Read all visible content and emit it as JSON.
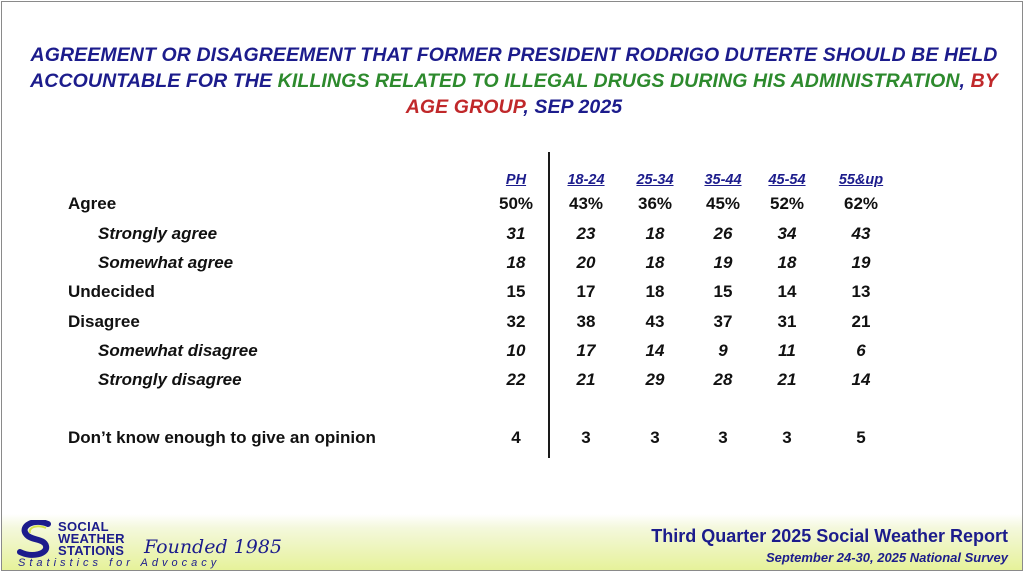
{
  "title": {
    "part1": "AGREEMENT OR DISAGREEMENT THAT FORMER PRESIDENT RODRIGO DUTERTE SHOULD BE HELD ACCOUNTABLE FOR THE ",
    "part2": "KILLINGS RELATED TO ILLEGAL DRUGS DURING HIS ADMINISTRATION",
    "part3": ", ",
    "part4": "BY AGE GROUP",
    "part5": ", SEP 2025"
  },
  "colors": {
    "title_blue": "#1c1c8c",
    "title_green": "#2d8a2d",
    "title_red": "#c0282a",
    "footer_yellow": "#e6f29a"
  },
  "chart_data": {
    "type": "table",
    "columns": [
      "PH",
      "18-24",
      "25-34",
      "35-44",
      "45-54",
      "55&up"
    ],
    "rows": [
      {
        "label": "Agree",
        "indent": false,
        "values": [
          "50%",
          "43%",
          "36%",
          "45%",
          "52%",
          "62%"
        ]
      },
      {
        "label": "Strongly agree",
        "indent": true,
        "values": [
          "31",
          "23",
          "18",
          "26",
          "34",
          "43"
        ]
      },
      {
        "label": "Somewhat agree",
        "indent": true,
        "values": [
          "18",
          "20",
          "18",
          "19",
          "18",
          "19"
        ]
      },
      {
        "label": "Undecided",
        "indent": false,
        "values": [
          "15",
          "17",
          "18",
          "15",
          "14",
          "13"
        ]
      },
      {
        "label": "Disagree",
        "indent": false,
        "values": [
          "32",
          "38",
          "43",
          "37",
          "31",
          "21"
        ]
      },
      {
        "label": "Somewhat disagree",
        "indent": true,
        "values": [
          "10",
          "17",
          "14",
          "9",
          "11",
          "6"
        ]
      },
      {
        "label": "Strongly disagree",
        "indent": true,
        "values": [
          "22",
          "21",
          "29",
          "28",
          "21",
          "14"
        ]
      },
      {
        "label": "Don’t know enough to give an opinion",
        "indent": false,
        "values": [
          "4",
          "3",
          "3",
          "3",
          "3",
          "5"
        ]
      }
    ]
  },
  "footer": {
    "logo_line1": "SOCIAL",
    "logo_line2": "WEATHER",
    "logo_line3": "STATIONS",
    "founded": "Founded 1985",
    "tagline": "Statistics for Advocacy",
    "report": "Third Quarter 2025 Social Weather Report",
    "survey": "September 24-30, 2025 National Survey"
  }
}
